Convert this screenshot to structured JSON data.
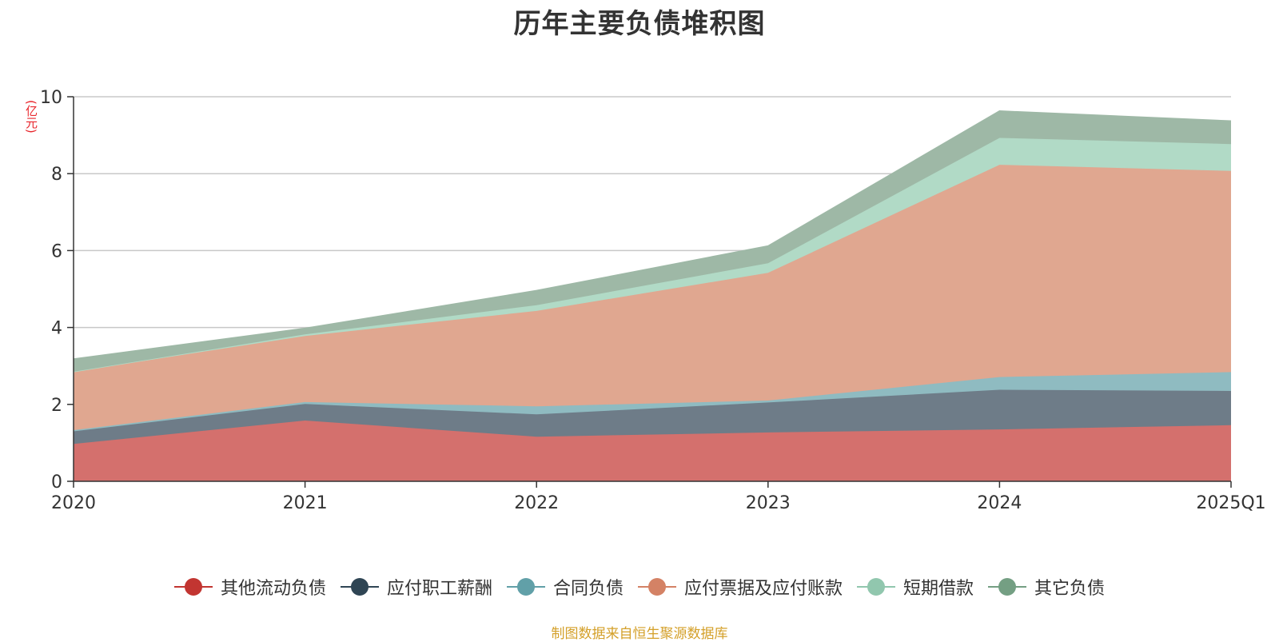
{
  "chart_data": {
    "type": "area",
    "stacked": true,
    "title": "历年主要负债堆积图",
    "unit_label": "(亿元)",
    "categories": [
      "2020",
      "2021",
      "2022",
      "2023",
      "2024",
      "2025Q1"
    ],
    "ylim": [
      0,
      10
    ],
    "yticks": [
      0,
      2,
      4,
      6,
      8,
      10
    ],
    "grid": true,
    "legend_position": "bottom",
    "series": [
      {
        "name": "其他流动负债",
        "color": "#c23531",
        "fill": "#d4706d",
        "values": [
          0.97,
          1.58,
          1.16,
          1.27,
          1.35,
          1.46
        ]
      },
      {
        "name": "应付职工薪酬",
        "color": "#2f4554",
        "fill": "#6e7c88",
        "values": [
          0.33,
          0.43,
          0.58,
          0.78,
          1.03,
          0.89
        ]
      },
      {
        "name": "合同负债",
        "color": "#61a0a8",
        "fill": "#8fbbc1",
        "values": [
          0.03,
          0.05,
          0.21,
          0.05,
          0.33,
          0.49
        ]
      },
      {
        "name": "应付票据及应付账款",
        "color": "#d48265",
        "fill": "#e0a790",
        "values": [
          1.52,
          1.72,
          2.48,
          3.32,
          5.52,
          5.23
        ]
      },
      {
        "name": "短期借款",
        "color": "#91c7ae",
        "fill": "#b1dac6",
        "values": [
          0.0,
          0.04,
          0.15,
          0.25,
          0.7,
          0.7
        ]
      },
      {
        "name": "其它负债",
        "color": "#749f83",
        "fill": "#9eb8a6",
        "values": [
          0.33,
          0.16,
          0.38,
          0.45,
          0.7,
          0.6
        ]
      }
    ]
  },
  "source_note": "制图数据来自恒生聚源数据库"
}
